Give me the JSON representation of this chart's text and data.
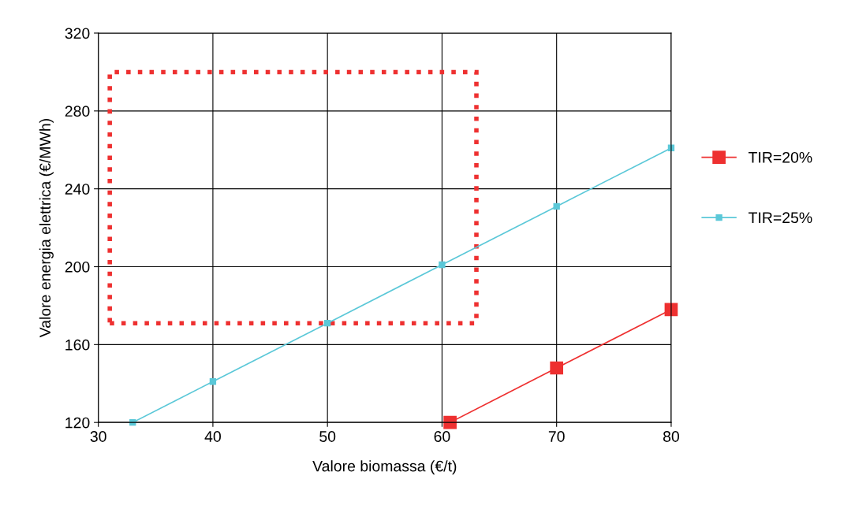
{
  "chart_data": {
    "type": "line",
    "xlabel": "Valore biomassa (€/t)",
    "ylabel": "Valore energia elettrica (€/MWh)",
    "series": [
      {
        "name": "TIR=20%",
        "color": "#ee3030",
        "marker": "square",
        "x": [
          60.7,
          70,
          80
        ],
        "values": [
          120,
          148,
          178
        ]
      },
      {
        "name": "TIR=25%",
        "color": "#5bc8d8",
        "marker": "square",
        "x": [
          33,
          40,
          50,
          60,
          70,
          80
        ],
        "values": [
          120,
          141,
          171,
          201,
          231,
          261
        ]
      }
    ],
    "xlim": [
      30,
      80
    ],
    "xticks": [
      30,
      40,
      50,
      60,
      70,
      80
    ],
    "ylim": [
      120,
      320
    ],
    "yticks": [
      120,
      160,
      200,
      240,
      280,
      320
    ],
    "grid": true,
    "legend": "right",
    "line_style": "solid"
  }
}
